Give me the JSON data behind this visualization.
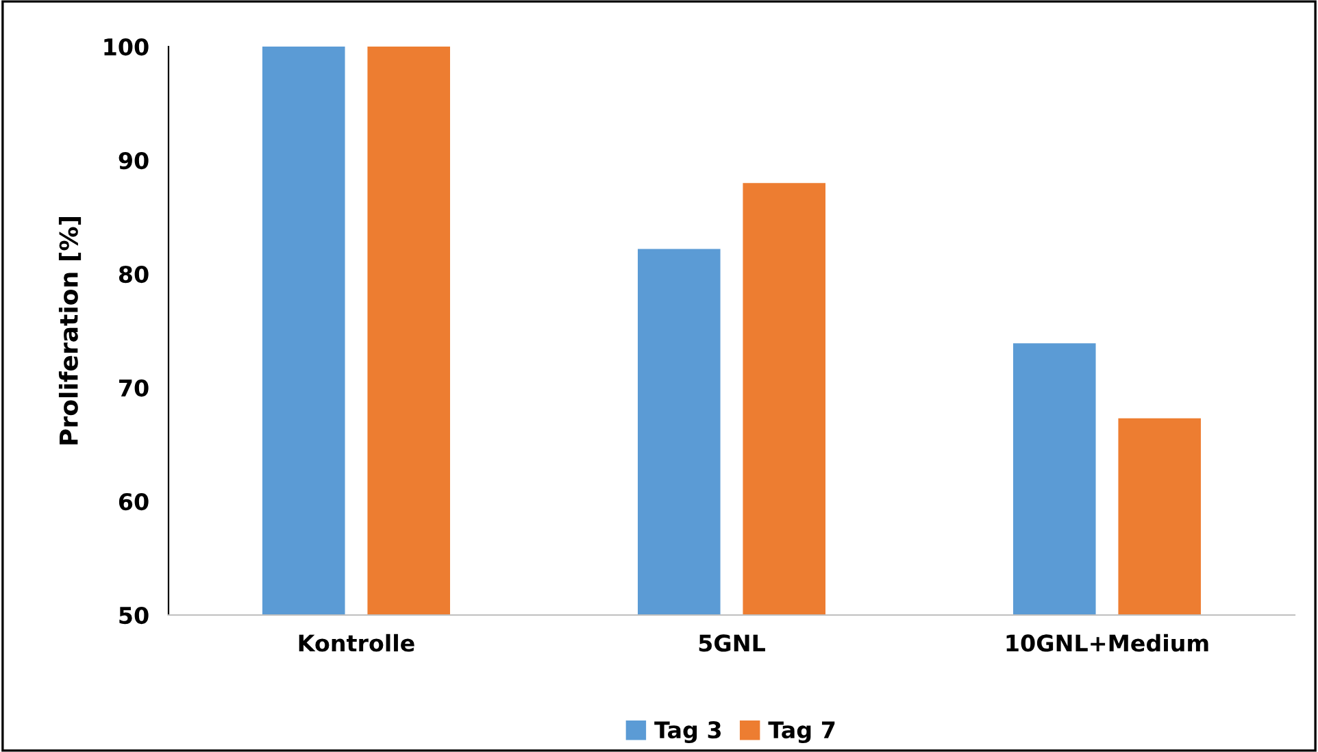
{
  "chart_data": {
    "type": "bar",
    "ylabel": "Proliferation [%]",
    "categories": [
      "Kontrolle",
      "5GNL",
      "10GNL+Medium"
    ],
    "series": [
      {
        "name": "Tag 3",
        "color": "#5b9bd5",
        "values": [
          100,
          82.2,
          73.9
        ]
      },
      {
        "name": "Tag 7",
        "color": "#ed7d31",
        "values": [
          100,
          88.0,
          67.3
        ]
      }
    ],
    "ylim": [
      50,
      100
    ],
    "yticks": [
      50,
      60,
      70,
      80,
      90,
      100
    ],
    "grid": false,
    "legend": "bottom"
  }
}
